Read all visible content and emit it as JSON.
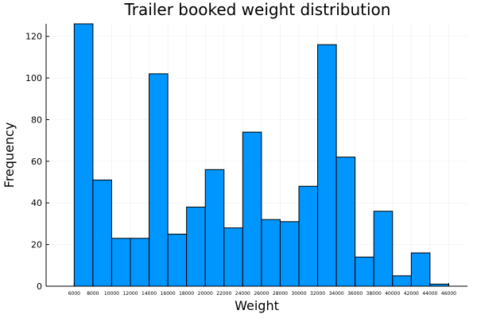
{
  "chart_data": {
    "type": "bar",
    "title": "Trailer booked weight distribution",
    "xlabel": "Weight",
    "ylabel": "Frequency",
    "bin_width": 2000,
    "bin_edges": [
      6000,
      8000,
      10000,
      12000,
      14000,
      16000,
      18000,
      20000,
      22000,
      24000,
      26000,
      28000,
      30000,
      32000,
      34000,
      36000,
      38000,
      40000,
      42000,
      44000,
      46000
    ],
    "values": [
      126,
      51,
      23,
      23,
      102,
      25,
      38,
      56,
      28,
      74,
      32,
      31,
      48,
      116,
      62,
      14,
      36,
      5,
      16,
      1
    ],
    "xticks": [
      6000,
      8000,
      10000,
      12000,
      14000,
      16000,
      18000,
      20000,
      22000,
      24000,
      26000,
      28000,
      30000,
      32000,
      34000,
      36000,
      38000,
      40000,
      42000,
      44000,
      46000
    ],
    "yticks": [
      0,
      20,
      40,
      60,
      80,
      100,
      120
    ],
    "xlim": [
      3000,
      48000
    ],
    "ylim": [
      0,
      126
    ],
    "grid": true,
    "legend": "none",
    "bar_color": "#0096FF",
    "edge_color": "#000000"
  }
}
